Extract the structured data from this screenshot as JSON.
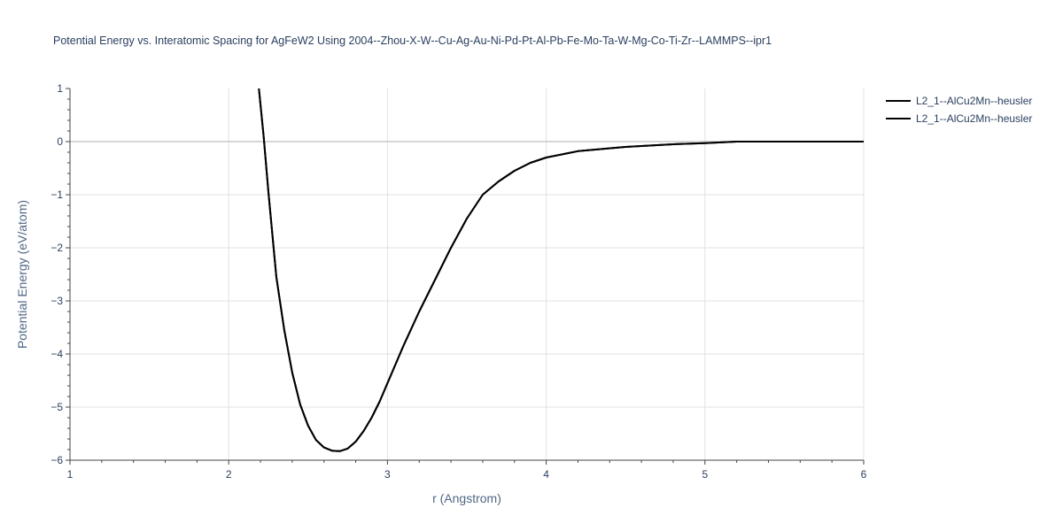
{
  "chart_data": {
    "type": "line",
    "title": "Potential Energy vs. Interatomic Spacing for AgFeW2 Using 2004--Zhou-X-W--Cu-Ag-Au-Ni-Pd-Pt-Al-Pb-Fe-Mo-Ta-W-Mg-Co-Ti-Zr--LAMMPS--ipr1",
    "xlabel": "r (Angstrom)",
    "ylabel": "Potential Energy (eV/atom)",
    "xlim": [
      1,
      6
    ],
    "ylim": [
      -6,
      1
    ],
    "x_ticks": [
      "1",
      "2",
      "3",
      "4",
      "5",
      "6"
    ],
    "y_ticks": [
      "1",
      "0",
      "−1",
      "−2",
      "−3",
      "−4",
      "−5",
      "−6"
    ],
    "grid": true,
    "legend_position": "top-right",
    "series": [
      {
        "name": "L2_1--AlCu2Mn--heusler",
        "color": "#000000",
        "x": [
          2.19,
          2.2,
          2.22,
          2.25,
          2.3,
          2.35,
          2.4,
          2.45,
          2.5,
          2.55,
          2.6,
          2.65,
          2.7,
          2.75,
          2.8,
          2.85,
          2.9,
          2.95,
          3.0,
          3.1,
          3.2,
          3.3,
          3.4,
          3.5,
          3.6,
          3.7,
          3.8,
          3.9,
          4.0,
          4.2,
          4.5,
          4.8,
          5.0,
          5.2,
          5.5,
          6.0
        ],
        "y": [
          1.0,
          0.7,
          0.1,
          -0.95,
          -2.55,
          -3.55,
          -4.35,
          -4.95,
          -5.35,
          -5.62,
          -5.76,
          -5.82,
          -5.83,
          -5.78,
          -5.65,
          -5.45,
          -5.2,
          -4.9,
          -4.55,
          -3.85,
          -3.2,
          -2.6,
          -2.0,
          -1.45,
          -1.0,
          -0.75,
          -0.55,
          -0.4,
          -0.3,
          -0.18,
          -0.1,
          -0.05,
          -0.03,
          0.0,
          0.0,
          0.0
        ]
      },
      {
        "name": "L2_1--AlCu2Mn--heusler",
        "color": "#000000",
        "x": [
          2.19,
          2.2,
          2.22,
          2.25,
          2.3,
          2.35,
          2.4,
          2.45,
          2.5,
          2.55,
          2.6,
          2.65,
          2.7,
          2.75,
          2.8,
          2.85,
          2.9,
          2.95,
          3.0,
          3.1,
          3.2,
          3.3,
          3.4,
          3.5,
          3.6,
          3.7,
          3.8,
          3.9,
          4.0,
          4.2,
          4.5,
          4.8,
          5.0,
          5.2,
          5.5,
          6.0
        ],
        "y": [
          1.0,
          0.7,
          0.1,
          -0.95,
          -2.55,
          -3.55,
          -4.35,
          -4.95,
          -5.35,
          -5.62,
          -5.76,
          -5.82,
          -5.83,
          -5.78,
          -5.65,
          -5.45,
          -5.2,
          -4.9,
          -4.55,
          -3.85,
          -3.2,
          -2.6,
          -2.0,
          -1.45,
          -1.0,
          -0.75,
          -0.55,
          -0.4,
          -0.3,
          -0.18,
          -0.1,
          -0.05,
          -0.03,
          0.0,
          0.0,
          0.0
        ]
      }
    ]
  }
}
